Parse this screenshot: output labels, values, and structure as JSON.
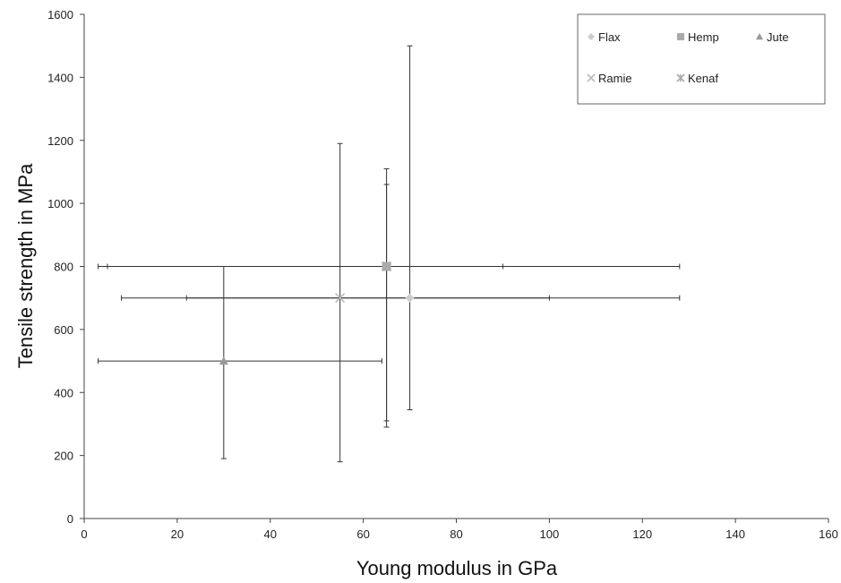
{
  "chart_data": {
    "type": "scatter",
    "title": "",
    "xlabel": "Young modulus in GPa",
    "ylabel": "Tensile strength in MPa",
    "xlim": [
      0,
      160
    ],
    "ylim": [
      0,
      1600
    ],
    "xticks": [
      0,
      20,
      40,
      60,
      80,
      100,
      120,
      140,
      160
    ],
    "yticks": [
      0,
      200,
      400,
      600,
      800,
      1000,
      1200,
      1400,
      1600
    ],
    "ytick_labels": [
      "0",
      "200",
      "400",
      "600",
      "800",
      "1000",
      "1200",
      "1400",
      "1600"
    ],
    "grid": false,
    "legend_position": "top-right",
    "series": [
      {
        "name": "Flax",
        "marker": "diamond",
        "color": "#cccccc",
        "x": 70,
        "y": 700,
        "xerr": [
          22,
          128
        ],
        "yerr": [
          345,
          1500
        ]
      },
      {
        "name": "Hemp",
        "marker": "square",
        "color": "#aaaaaa",
        "x": 65,
        "y": 800,
        "xerr": [
          5,
          90
        ],
        "yerr": [
          290,
          1110
        ]
      },
      {
        "name": "Jute",
        "marker": "triangle",
        "color": "#999999",
        "x": 30,
        "y": 500,
        "xerr": [
          3,
          64
        ],
        "yerr": [
          190,
          800
        ]
      },
      {
        "name": "Ramie",
        "marker": "x",
        "color": "#bbbbbb",
        "x": 55,
        "y": 700,
        "xerr": [
          8,
          100
        ],
        "yerr": [
          180,
          1190
        ]
      },
      {
        "name": "Kenaf",
        "marker": "asterisk",
        "color": "#aaaaaa",
        "x": 65,
        "y": 800,
        "xerr": [
          3,
          128
        ],
        "yerr": [
          310,
          1060
        ]
      }
    ]
  },
  "legend": {
    "rows": [
      [
        "Flax",
        "Hemp",
        "Jute"
      ],
      [
        "Ramie",
        "Kenaf"
      ]
    ]
  }
}
